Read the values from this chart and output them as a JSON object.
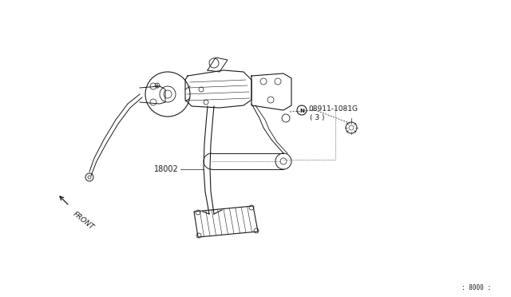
{
  "bg_color": "#ffffff",
  "part_label_main": "18002",
  "part_label_nut": "08911-1081G",
  "part_label_qty": "( 3 )",
  "part_label_8000": ": 8000 :",
  "front_label": "FRONT",
  "text_color": "#1a1a1a",
  "line_color": "#1a1a1a",
  "line_color_light": "#555555"
}
